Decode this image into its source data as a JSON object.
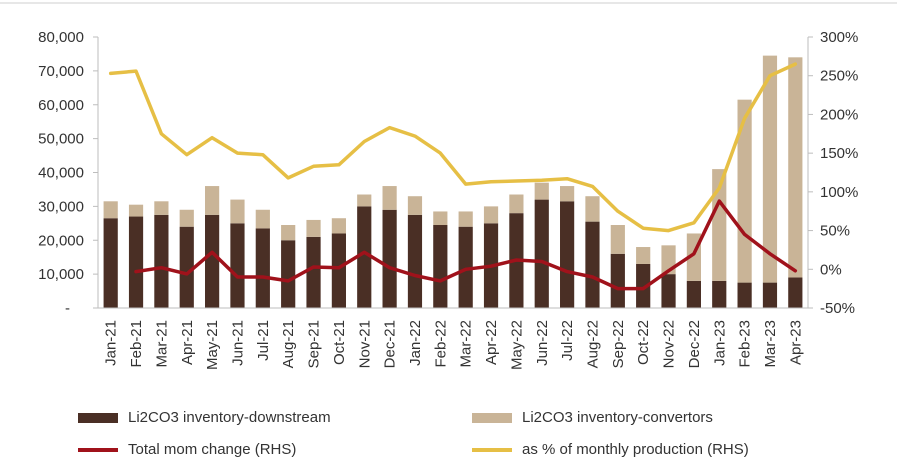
{
  "chart_data": {
    "type": "bar",
    "categories": [
      "Jan-21",
      "Feb-21",
      "Mar-21",
      "Apr-21",
      "May-21",
      "Jun-21",
      "Jul-21",
      "Aug-21",
      "Sep-21",
      "Oct-21",
      "Nov-21",
      "Dec-21",
      "Jan-22",
      "Feb-22",
      "Mar-22",
      "Apr-22",
      "May-22",
      "Jun-22",
      "Jul-22",
      "Aug-22",
      "Sep-22",
      "Oct-22",
      "Nov-22",
      "Dec-22",
      "Jan-23",
      "Feb-23",
      "Mar-23",
      "Apr-23"
    ],
    "left_axis": {
      "ylim": [
        0,
        80000
      ],
      "ticks": [
        "-",
        "10,000",
        "20,000",
        "30,000",
        "40,000",
        "50,000",
        "60,000",
        "70,000",
        "80,000"
      ]
    },
    "right_axis": {
      "ylim": [
        -50,
        300
      ],
      "ticks": [
        "-50%",
        "0%",
        "50%",
        "100%",
        "150%",
        "200%",
        "250%",
        "300%"
      ]
    },
    "series": [
      {
        "name": "Li2CO3 inventory-downstream",
        "type": "bar",
        "axis": "left",
        "color": "#4a2f25",
        "values": [
          26500,
          27000,
          27500,
          24000,
          27500,
          25000,
          23500,
          20000,
          21000,
          22000,
          30000,
          29000,
          27500,
          24500,
          24000,
          25000,
          28000,
          32000,
          31500,
          25500,
          16000,
          13000,
          10000,
          8000,
          8000,
          7500,
          7500,
          9000
        ]
      },
      {
        "name": "Li2CO3 inventory-convertors",
        "type": "bar",
        "axis": "left",
        "color": "#c9b497",
        "values": [
          5000,
          3500,
          4000,
          5000,
          8500,
          7000,
          5500,
          4500,
          5000,
          4500,
          3500,
          7000,
          5500,
          4000,
          4500,
          5000,
          5500,
          5000,
          4500,
          7500,
          8500,
          5000,
          8500,
          14000,
          33000,
          54000,
          67000,
          65000
        ]
      },
      {
        "name": "Total mom change (RHS)",
        "type": "line",
        "axis": "right",
        "color": "#a0121b",
        "values": [
          null,
          -3,
          2,
          -6,
          22,
          -10,
          -10,
          -15,
          3,
          2,
          22,
          2,
          -8,
          -15,
          0,
          4,
          12,
          10,
          -3,
          -10,
          -25,
          -25,
          -2,
          20,
          88,
          45,
          20,
          -2
        ]
      },
      {
        "name": "as % of monthly production (RHS)",
        "type": "line",
        "axis": "right",
        "color": "#e6bf45",
        "values": [
          253,
          256,
          175,
          148,
          170,
          150,
          148,
          118,
          133,
          135,
          165,
          183,
          172,
          150,
          110,
          113,
          114,
          115,
          117,
          107,
          75,
          53,
          50,
          60,
          105,
          195,
          250,
          265
        ]
      }
    ]
  }
}
